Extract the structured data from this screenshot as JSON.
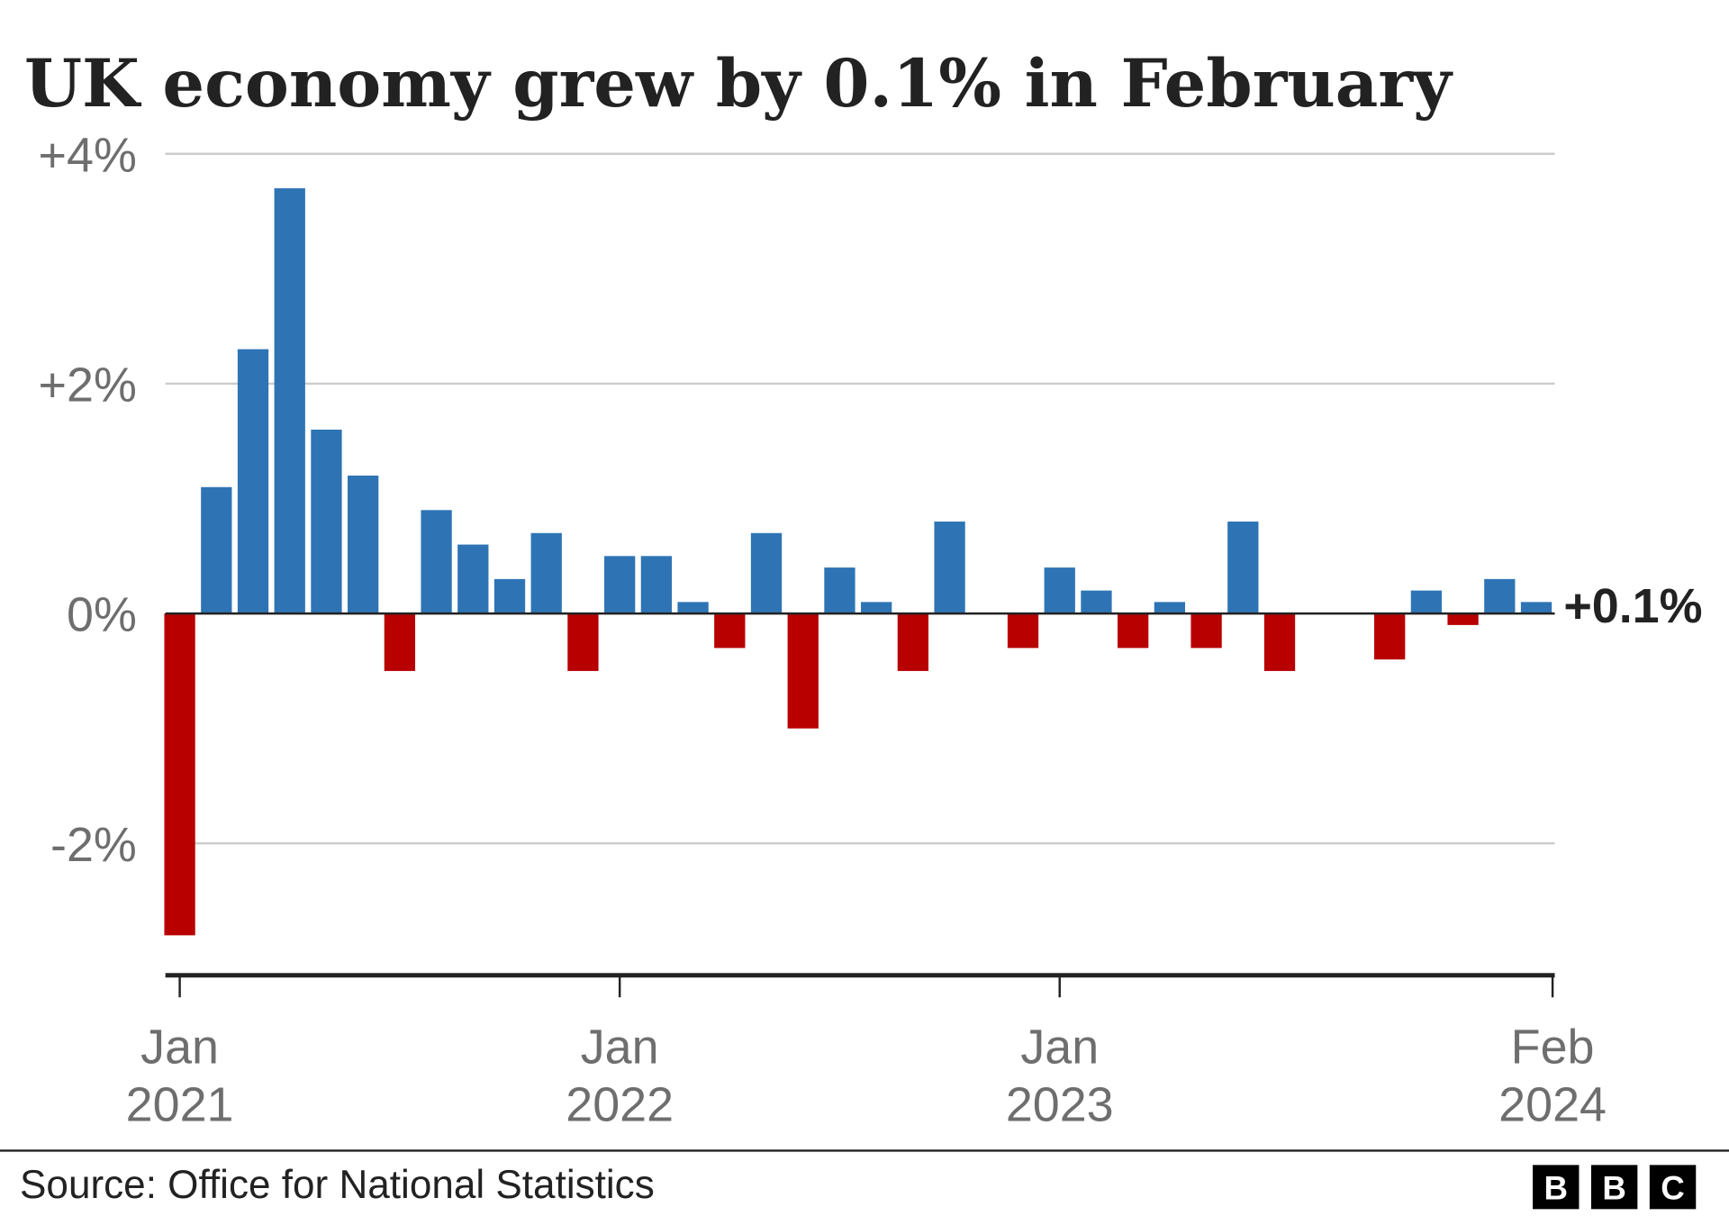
{
  "chart_data": {
    "type": "bar",
    "title": "UK economy grew by 0.1% in February",
    "source": "Source: Office for National Statistics",
    "logo": "BBC",
    "annotation": "+0.1%",
    "ylim": [
      -3.1,
      4
    ],
    "yticks": [
      {
        "value": 4,
        "label": "+4%"
      },
      {
        "value": 2,
        "label": "+2%"
      },
      {
        "value": 0,
        "label": "0%"
      },
      {
        "value": -2,
        "label": "-2%"
      }
    ],
    "xticks": [
      {
        "index": 0,
        "line1": "Jan",
        "line2": "2021"
      },
      {
        "index": 12,
        "line1": "Jan",
        "line2": "2022"
      },
      {
        "index": 24,
        "line1": "Jan",
        "line2": "2023"
      },
      {
        "index": 37,
        "line1": "Feb",
        "line2": "2024"
      }
    ],
    "categories": [
      "Jan 2021",
      "Feb 2021",
      "Mar 2021",
      "Apr 2021",
      "May 2021",
      "Jun 2021",
      "Jul 2021",
      "Aug 2021",
      "Sep 2021",
      "Oct 2021",
      "Nov 2021",
      "Dec 2021",
      "Jan 2022",
      "Feb 2022",
      "Mar 2022",
      "Apr 2022",
      "May 2022",
      "Jun 2022",
      "Jul 2022",
      "Aug 2022",
      "Sep 2022",
      "Oct 2022",
      "Nov 2022",
      "Dec 2022",
      "Jan 2023",
      "Feb 2023",
      "Mar 2023",
      "Apr 2023",
      "May 2023",
      "Jun 2023",
      "Jul 2023",
      "Aug 2023",
      "Sep 2023",
      "Oct 2023",
      "Nov 2023",
      "Dec 2023",
      "Jan 2024",
      "Feb 2024"
    ],
    "values": [
      -2.8,
      1.1,
      2.3,
      3.7,
      1.6,
      1.2,
      -0.5,
      0.9,
      0.6,
      0.3,
      0.7,
      -0.5,
      0.5,
      0.5,
      0.1,
      -0.3,
      0.7,
      -1.0,
      0.4,
      0.1,
      -0.5,
      0.8,
      0,
      -0.3,
      0.4,
      0.2,
      -0.3,
      0.1,
      -0.3,
      0.8,
      -0.5,
      0,
      0,
      -0.4,
      0.2,
      -0.1,
      0.3,
      0.1
    ],
    "unit": "%",
    "grid": true,
    "colors": {
      "positive": "#2e74b5",
      "negative": "#b80000",
      "grid": "#cccccc",
      "axis": "#222222"
    }
  }
}
